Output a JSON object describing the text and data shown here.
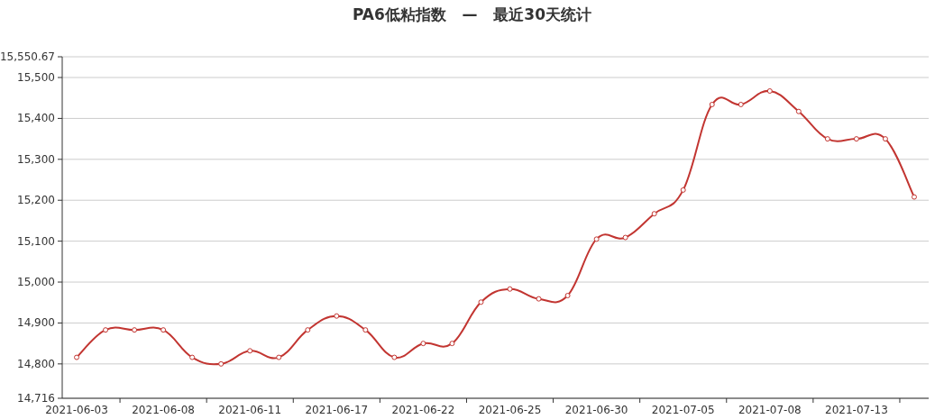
{
  "chart_data": {
    "type": "line",
    "title": "PA6低粘指数   —   最近30天统计",
    "categories": [
      "2021-06-03",
      null,
      null,
      "2021-06-08",
      null,
      null,
      "2021-06-11",
      null,
      null,
      "2021-06-17",
      null,
      null,
      "2021-06-22",
      null,
      null,
      "2021-06-25",
      null,
      null,
      "2021-06-30",
      null,
      null,
      "2021-07-05",
      null,
      null,
      "2021-07-08",
      null,
      null,
      "2021-07-13",
      null,
      null
    ],
    "series": [
      {
        "color": "#c23531",
        "values": [
          14816,
          14883,
          14883,
          14883,
          14816,
          14800,
          14832,
          14816,
          14883,
          14917,
          14883,
          14816,
          14850,
          14850,
          14951,
          14983,
          14959,
          14967,
          15105,
          15109,
          15167,
          15225,
          15434,
          15434,
          15467,
          15417,
          15350,
          15350,
          15350,
          15208
        ]
      }
    ],
    "ylim": [
      14716,
      15550.67
    ],
    "yticks": [
      {
        "value": 14716,
        "label": "14,716"
      },
      {
        "value": 14800,
        "label": "14,800"
      },
      {
        "value": 14900,
        "label": "14,900"
      },
      {
        "value": 15000,
        "label": "15,000"
      },
      {
        "value": 15100,
        "label": "15,100"
      },
      {
        "value": 15200,
        "label": "15,200"
      },
      {
        "value": 15300,
        "label": "15,300"
      },
      {
        "value": 15400,
        "label": "15,400"
      },
      {
        "value": 15500,
        "label": "15,500"
      },
      {
        "value": 15550.67,
        "label": "15,550.67"
      }
    ],
    "grid": "y",
    "marker": "circle",
    "line_style": "solid"
  }
}
